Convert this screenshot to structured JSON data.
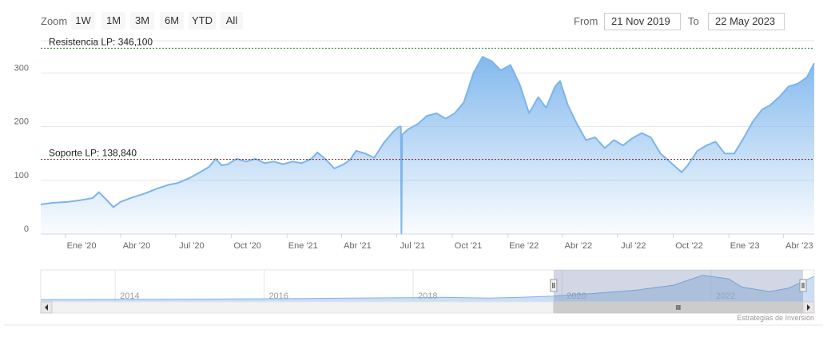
{
  "toolbar": {
    "zoom_label": "Zoom",
    "buttons": [
      "1W",
      "1M",
      "3M",
      "6M",
      "YTD",
      "All"
    ],
    "from_label": "From",
    "from_value": "21 Nov 2019",
    "to_label": "To",
    "to_value": "22 May 2023"
  },
  "credits": "Estrategias de Inversión",
  "colors": {
    "line": "#7cb5ec",
    "fill_top": "#7cb5ec",
    "resistance": "#2e7d32",
    "support": "#7b1f1f"
  },
  "chart_data": {
    "type": "area",
    "title": "",
    "xlabel": "",
    "ylabel": "",
    "ylim": [
      0,
      360
    ],
    "y_ticks": [
      0,
      100,
      200,
      300
    ],
    "x_ticks": [
      "Ene '20",
      "Abr '20",
      "Jul '20",
      "Oct '20",
      "Ene '21",
      "Abr '21",
      "Jul '21",
      "Oct '21",
      "Ene '22",
      "Abr '22",
      "Jul '22",
      "Oct '22",
      "Ene '23",
      "Abr '23"
    ],
    "x_range": [
      "2019-11-21",
      "2023-05-22"
    ],
    "grid": true,
    "legend": "none",
    "series": [
      {
        "values": [
          [
            "2019-11-21",
            55
          ],
          [
            "2019-12-10",
            58
          ],
          [
            "2020-01-05",
            60
          ],
          [
            "2020-01-25",
            63
          ],
          [
            "2020-02-15",
            67
          ],
          [
            "2020-02-25",
            78
          ],
          [
            "2020-03-10",
            62
          ],
          [
            "2020-03-20",
            50
          ],
          [
            "2020-04-01",
            60
          ],
          [
            "2020-04-20",
            68
          ],
          [
            "2020-05-10",
            75
          ],
          [
            "2020-06-01",
            85
          ],
          [
            "2020-06-20",
            92
          ],
          [
            "2020-07-05",
            95
          ],
          [
            "2020-07-25",
            105
          ],
          [
            "2020-08-10",
            115
          ],
          [
            "2020-08-25",
            125
          ],
          [
            "2020-09-05",
            140
          ],
          [
            "2020-09-15",
            128
          ],
          [
            "2020-09-25",
            130
          ],
          [
            "2020-10-10",
            140
          ],
          [
            "2020-10-25",
            135
          ],
          [
            "2020-11-10",
            140
          ],
          [
            "2020-11-25",
            132
          ],
          [
            "2020-12-10",
            135
          ],
          [
            "2020-12-25",
            130
          ],
          [
            "2021-01-10",
            135
          ],
          [
            "2021-01-25",
            132
          ],
          [
            "2021-02-10",
            140
          ],
          [
            "2021-02-20",
            152
          ],
          [
            "2021-03-05",
            140
          ],
          [
            "2021-03-20",
            122
          ],
          [
            "2021-04-05",
            130
          ],
          [
            "2021-04-15",
            138
          ],
          [
            "2021-04-25",
            155
          ],
          [
            "2021-05-10",
            150
          ],
          [
            "2021-05-25",
            142
          ],
          [
            "2021-06-10",
            170
          ],
          [
            "2021-06-25",
            190
          ],
          [
            "2021-07-05",
            200
          ],
          [
            "2021-07-08",
            200
          ],
          [
            "2021-07-09",
            0
          ],
          [
            "2021-07-10",
            185
          ],
          [
            "2021-07-20",
            195
          ],
          [
            "2021-08-05",
            205
          ],
          [
            "2021-08-20",
            220
          ],
          [
            "2021-09-05",
            225
          ],
          [
            "2021-09-20",
            215
          ],
          [
            "2021-10-05",
            225
          ],
          [
            "2021-10-20",
            245
          ],
          [
            "2021-11-05",
            300
          ],
          [
            "2021-11-20",
            330
          ],
          [
            "2021-12-05",
            322
          ],
          [
            "2021-12-20",
            305
          ],
          [
            "2022-01-05",
            315
          ],
          [
            "2022-01-20",
            280
          ],
          [
            "2022-02-05",
            225
          ],
          [
            "2022-02-20",
            255
          ],
          [
            "2022-03-05",
            235
          ],
          [
            "2022-03-20",
            275
          ],
          [
            "2022-03-28",
            285
          ],
          [
            "2022-04-10",
            240
          ],
          [
            "2022-04-25",
            205
          ],
          [
            "2022-05-10",
            175
          ],
          [
            "2022-05-25",
            180
          ],
          [
            "2022-06-10",
            160
          ],
          [
            "2022-06-25",
            175
          ],
          [
            "2022-07-10",
            165
          ],
          [
            "2022-07-25",
            178
          ],
          [
            "2022-08-10",
            188
          ],
          [
            "2022-08-25",
            180
          ],
          [
            "2022-09-10",
            150
          ],
          [
            "2022-09-25",
            135
          ],
          [
            "2022-10-05",
            125
          ],
          [
            "2022-10-15",
            115
          ],
          [
            "2022-10-25",
            128
          ],
          [
            "2022-11-10",
            155
          ],
          [
            "2022-11-25",
            165
          ],
          [
            "2022-12-10",
            172
          ],
          [
            "2022-12-25",
            150
          ],
          [
            "2023-01-10",
            150
          ],
          [
            "2023-01-25",
            178
          ],
          [
            "2023-02-10",
            210
          ],
          [
            "2023-02-25",
            232
          ],
          [
            "2023-03-10",
            240
          ],
          [
            "2023-03-25",
            255
          ],
          [
            "2023-04-10",
            275
          ],
          [
            "2023-04-25",
            280
          ],
          [
            "2023-05-10",
            292
          ],
          [
            "2023-05-22",
            318
          ]
        ]
      }
    ],
    "plot_lines": [
      {
        "value": 346.1,
        "label": "Resistencia LP: 346,100"
      },
      {
        "value": 138.84,
        "label": "Soporte LP: 138,840"
      }
    ],
    "navigator": {
      "x_ticks": [
        "2014",
        "2016",
        "2018",
        "2020",
        "2022"
      ],
      "range": [
        "2013-01-01",
        "2023-05-22"
      ],
      "selected": [
        "2019-11-21",
        "2023-05-22"
      ],
      "values": [
        [
          "2013-01-01",
          10
        ],
        [
          "2014-01-01",
          12
        ],
        [
          "2015-01-01",
          15
        ],
        [
          "2016-01-01",
          20
        ],
        [
          "2017-01-01",
          28
        ],
        [
          "2018-01-01",
          35
        ],
        [
          "2018-06-01",
          40
        ],
        [
          "2019-01-01",
          30
        ],
        [
          "2019-06-01",
          38
        ],
        [
          "2019-11-21",
          55
        ],
        [
          "2020-06-01",
          90
        ],
        [
          "2021-01-01",
          135
        ],
        [
          "2021-07-01",
          200
        ],
        [
          "2021-11-20",
          330
        ],
        [
          "2022-03-28",
          285
        ],
        [
          "2022-06-01",
          175
        ],
        [
          "2022-10-15",
          115
        ],
        [
          "2023-01-15",
          160
        ],
        [
          "2023-05-22",
          318
        ]
      ]
    }
  }
}
